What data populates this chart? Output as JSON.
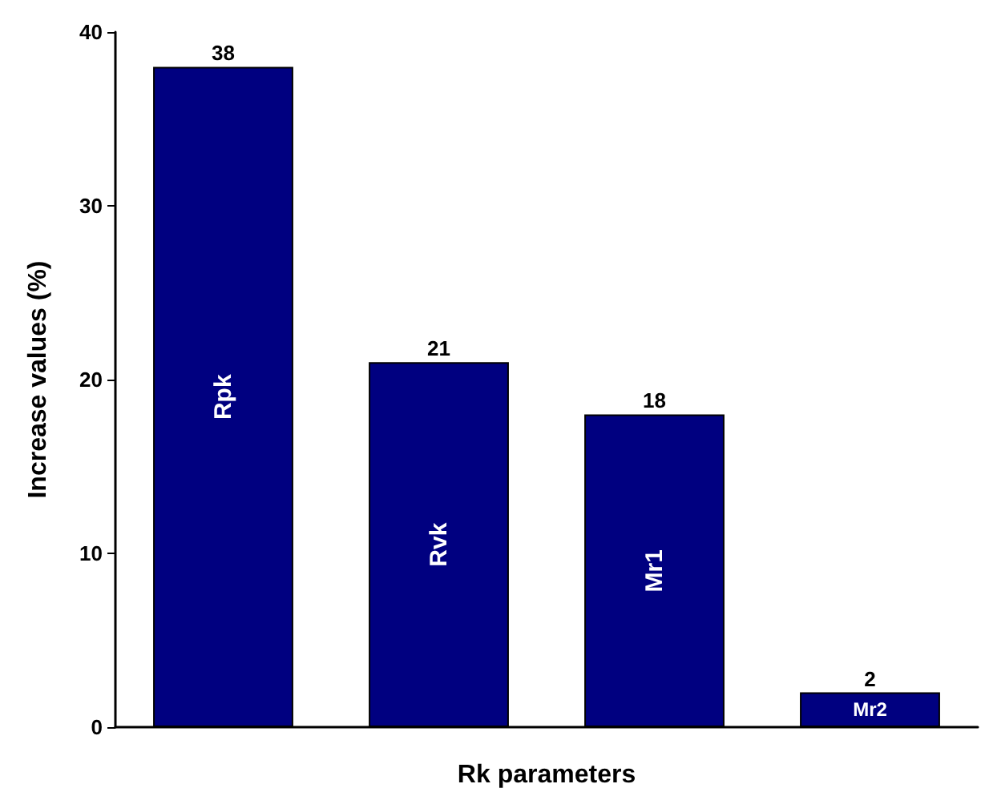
{
  "chart_data": {
    "type": "bar",
    "xlabel": "Rk parameters",
    "ylabel": "Increase values (%)",
    "categories": [
      "Rpk",
      "Rvk",
      "Mr1",
      "Mr2"
    ],
    "values": [
      38,
      21,
      18,
      2
    ],
    "color": "#000080",
    "ylim": [
      0,
      40
    ],
    "yticks": [
      0,
      10,
      20,
      30,
      40
    ],
    "data_labels": true,
    "tick_labels": "y"
  }
}
